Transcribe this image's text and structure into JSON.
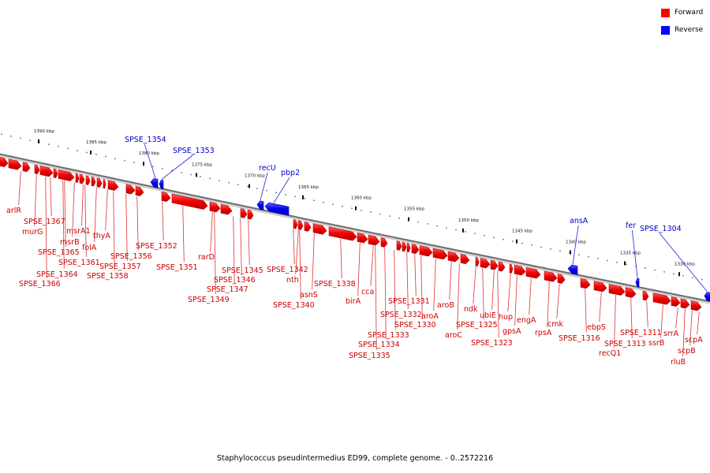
{
  "legend": {
    "forward_label": "Forward",
    "reverse_label": "Reverse",
    "forward_color": "#ff0000",
    "reverse_color": "#0000ff"
  },
  "caption": "Staphylococcus pseudintermedius ED99, complete genome. - 0..2572216",
  "scale_ticks": [
    "1390 kbp",
    "1385 kbp",
    "1380 kbp",
    "1375 kbp",
    "1370 kbp",
    "1365 kbp",
    "1360 kbp",
    "1355 kbp",
    "1350 kbp",
    "1345 kbp",
    "1340 kbp",
    "1335 kbp",
    "1330 kbp"
  ],
  "forward_labels": [
    "arlR",
    "SPSE_1367",
    "murG",
    "msrA1",
    "msrB",
    "SPSE_1365",
    "SPSE_1364",
    "SPSE_1366",
    "SPSE_1361",
    "folA",
    "thyA",
    "SPSE_1358",
    "SPSE_1357",
    "SPSE_1356",
    "SPSE_1352",
    "SPSE_1351",
    "rarD",
    "SPSE_1345",
    "SPSE_1346",
    "SPSE_1347",
    "SPSE_1349",
    "SPSE_1342",
    "nth",
    "asnS",
    "SPSE_1340",
    "SPSE_1338",
    "cca",
    "birA",
    "SPSE_1331",
    "SPSE_1332",
    "SPSE_1333",
    "SPSE_1334",
    "SPSE_1335",
    "aroA",
    "SPSE_1330",
    "aroB",
    "aroC",
    "ndk",
    "SPSE_1325",
    "ubiE",
    "hup",
    "gpsA",
    "SPSE_1323",
    "engA",
    "rpsA",
    "cmk",
    "SPSE_1316",
    "ebpS",
    "SPSE_1313",
    "recQ1",
    "SPSE_1311",
    "ssrB",
    "srrA",
    "scpB",
    "scpA",
    "rluB"
  ],
  "reverse_labels": [
    "SPSE_1354",
    "SPSE_1353",
    "recU",
    "pbp2",
    "ansA",
    "fer",
    "SPSE_1304"
  ]
}
